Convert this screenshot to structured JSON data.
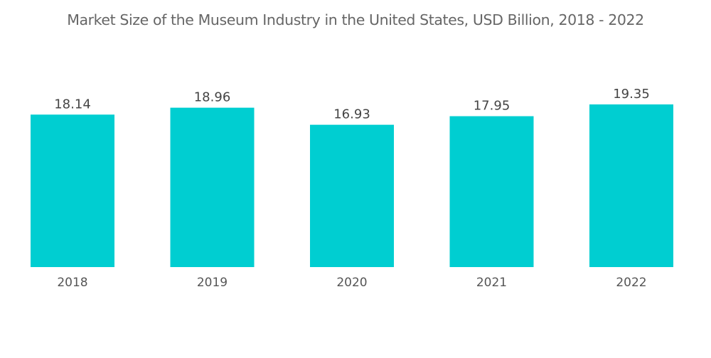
{
  "chart_data": {
    "type": "bar",
    "title": "Market Size of the Museum Industry in the United States, USD Billion, 2018 - 2022",
    "categories": [
      "2018",
      "2019",
      "2020",
      "2021",
      "2022"
    ],
    "values": [
      18.14,
      18.96,
      16.93,
      17.95,
      19.35
    ],
    "value_labels": [
      "18.14",
      "18.96",
      "16.93",
      "17.95",
      "19.35"
    ],
    "xlabel": "",
    "ylabel": "",
    "ylim": [
      0,
      19.35
    ],
    "grid": false,
    "legend": "none",
    "bar_color": "#00CED1"
  }
}
